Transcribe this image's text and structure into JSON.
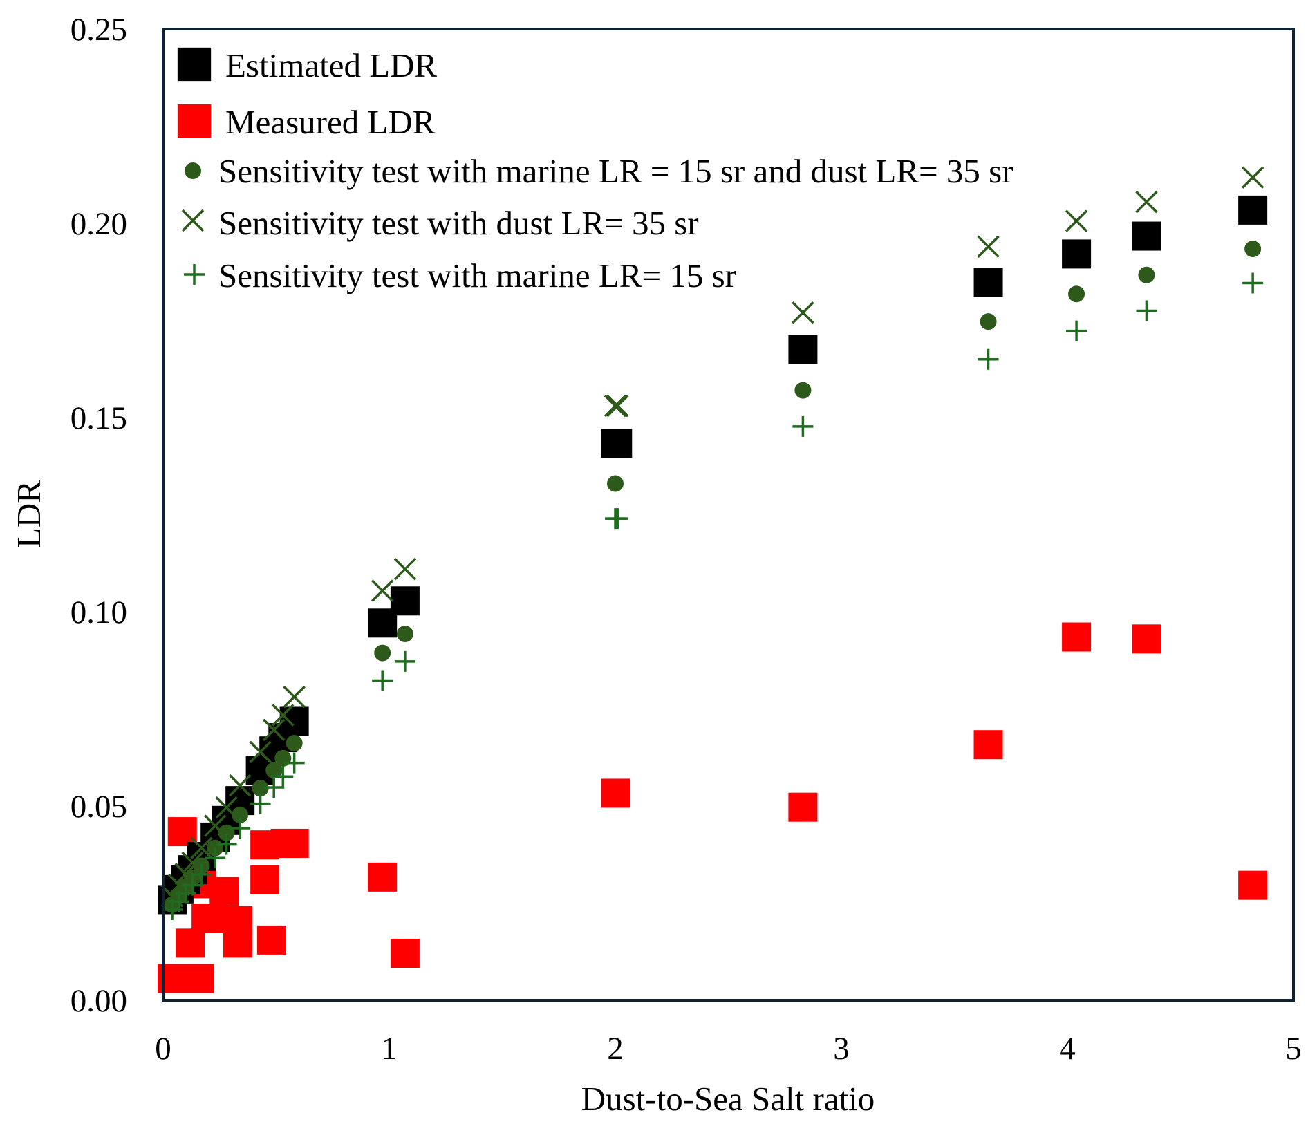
{
  "chart_data": {
    "type": "scatter",
    "xlabel": "Dust-to-Sea Salt ratio",
    "ylabel": "LDR",
    "xlim": [
      0,
      5
    ],
    "ylim": [
      0,
      0.25
    ],
    "xticks": [
      "0",
      "1",
      "2",
      "3",
      "4",
      "5"
    ],
    "yticks": [
      "0.00",
      "0.05",
      "0.10",
      "0.15",
      "0.20",
      "0.25"
    ],
    "grid": false,
    "legend_position": "top-left",
    "series": [
      {
        "name": "Estimated LDR",
        "marker": "square",
        "color": "#000000",
        "x": [
          0.04,
          0.07,
          0.1,
          0.13,
          0.17,
          0.23,
          0.28,
          0.34,
          0.43,
          0.49,
          0.53,
          0.58,
          0.97,
          1.07,
          2.0,
          2.01,
          2.83,
          3.65,
          4.04,
          4.35,
          4.82
        ],
        "y": [
          0.0259,
          0.0285,
          0.031,
          0.0336,
          0.037,
          0.042,
          0.0463,
          0.0514,
          0.0591,
          0.0642,
          0.0676,
          0.0718,
          0.0971,
          0.1028,
          0.1434,
          0.1434,
          0.1675,
          0.1848,
          0.1921,
          0.1967,
          0.2034
        ]
      },
      {
        "name": "Measured LDR",
        "marker": "square",
        "color": "#ff0000",
        "x": [
          0.085,
          0.04,
          0.16,
          0.12,
          0.19,
          0.27,
          0.33,
          0.33,
          0.45,
          0.54,
          0.58,
          0.45,
          0.48,
          0.17,
          0.22,
          0.97,
          1.07,
          2.0,
          2.83,
          3.65,
          4.04,
          4.35,
          4.82
        ],
        "y": [
          0.0434,
          0.0056,
          0.0056,
          0.0147,
          0.021,
          0.028,
          0.0205,
          0.0147,
          0.04,
          0.0404,
          0.0404,
          0.031,
          0.0155,
          0.03,
          0.021,
          0.0317,
          0.0121,
          0.0533,
          0.0497,
          0.0658,
          0.0935,
          0.093,
          0.0296
        ]
      },
      {
        "name": "Sensitivity test with marine LR = 15 sr and dust LR= 35 sr",
        "marker": "circle",
        "color": "#2d5a1b",
        "x": [
          0.04,
          0.07,
          0.1,
          0.13,
          0.17,
          0.23,
          0.28,
          0.34,
          0.43,
          0.49,
          0.53,
          0.58,
          0.97,
          1.07,
          2.0,
          2.83,
          3.65,
          4.04,
          4.35,
          4.82
        ],
        "y": [
          0.0246,
          0.0269,
          0.0292,
          0.0315,
          0.0346,
          0.0392,
          0.0431,
          0.0477,
          0.0546,
          0.0592,
          0.0623,
          0.0662,
          0.0894,
          0.0943,
          0.133,
          0.157,
          0.1747,
          0.1818,
          0.1867,
          0.1934
        ]
      },
      {
        "name": "Sensitivity test with dust LR= 35 sr",
        "marker": "x",
        "color": "#2d5a1b",
        "x": [
          0.04,
          0.07,
          0.1,
          0.13,
          0.17,
          0.23,
          0.28,
          0.34,
          0.43,
          0.49,
          0.53,
          0.58,
          0.97,
          1.07,
          2.0,
          2.01,
          2.83,
          3.65,
          4.04,
          4.35,
          4.82
        ],
        "y": [
          0.0268,
          0.0297,
          0.0325,
          0.0354,
          0.0392,
          0.0449,
          0.0496,
          0.0553,
          0.0639,
          0.0696,
          0.0734,
          0.0781,
          0.1054,
          0.111,
          0.153,
          0.153,
          0.177,
          0.194,
          0.2006,
          0.2055,
          0.2118
        ]
      },
      {
        "name": "Sensitivity test with marine LR= 15 sr",
        "marker": "plus",
        "color": "#1f6b1f",
        "x": [
          0.04,
          0.07,
          0.1,
          0.13,
          0.17,
          0.23,
          0.28,
          0.34,
          0.43,
          0.49,
          0.53,
          0.58,
          0.97,
          1.07,
          2.0,
          2.01,
          2.83,
          3.65,
          4.04,
          4.35,
          4.82
        ],
        "y": [
          0.0233,
          0.0254,
          0.0275,
          0.0296,
          0.0324,
          0.0366,
          0.0401,
          0.0443,
          0.0506,
          0.0548,
          0.0576,
          0.0611,
          0.0823,
          0.0872,
          0.124,
          0.124,
          0.1477,
          0.165,
          0.1723,
          0.1775,
          0.1846
        ]
      }
    ]
  }
}
